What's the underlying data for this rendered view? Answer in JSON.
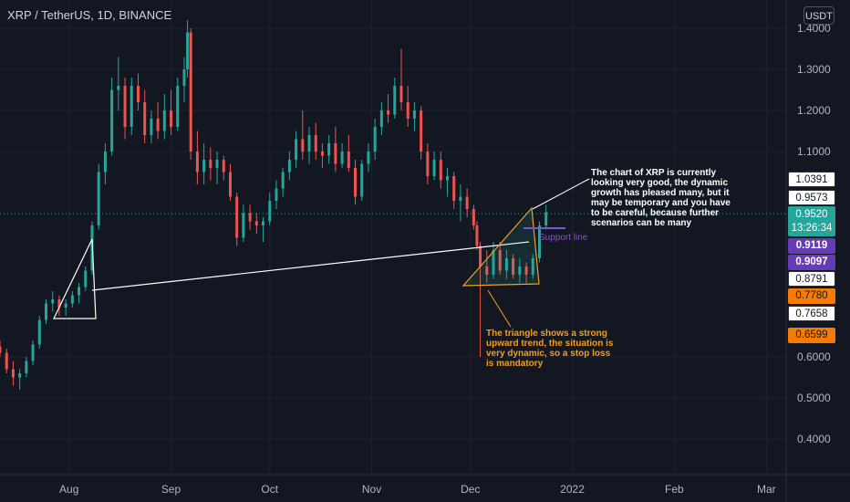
{
  "header": {
    "symbol_title": "XRP / TetherUS, 1D, BINANCE",
    "currency": "USDT"
  },
  "chart_data": {
    "type": "candlestick",
    "symbol": "XRP / TetherUS",
    "interval": "1D",
    "exchange": "BINANCE",
    "y_axis": {
      "ticks": [
        "1.4000",
        "1.3000",
        "1.2000",
        "1.1000",
        "0.6000",
        "0.5000",
        "0.4000"
      ],
      "ylim": [
        0.29,
        1.44
      ]
    },
    "x_axis": {
      "ticks": [
        "Aug",
        "Sep",
        "Oct",
        "Nov",
        "Dec",
        "2022",
        "Feb",
        "Mar"
      ],
      "range": [
        "2021-07-11",
        "2022-03-07"
      ]
    },
    "series": [
      {
        "date": "2021-07-11",
        "open": 0.625,
        "high": 0.64,
        "low": 0.6,
        "close": 0.61
      },
      {
        "date": "2021-07-13",
        "open": 0.61,
        "high": 0.62,
        "low": 0.56,
        "close": 0.57
      },
      {
        "date": "2021-07-15",
        "open": 0.57,
        "high": 0.59,
        "low": 0.53,
        "close": 0.55
      },
      {
        "date": "2021-07-17",
        "open": 0.55,
        "high": 0.57,
        "low": 0.52,
        "close": 0.56
      },
      {
        "date": "2021-07-19",
        "open": 0.56,
        "high": 0.6,
        "low": 0.55,
        "close": 0.59
      },
      {
        "date": "2021-07-21",
        "open": 0.59,
        "high": 0.64,
        "low": 0.58,
        "close": 0.63
      },
      {
        "date": "2021-07-23",
        "open": 0.63,
        "high": 0.7,
        "low": 0.62,
        "close": 0.69
      },
      {
        "date": "2021-07-25",
        "open": 0.69,
        "high": 0.74,
        "low": 0.68,
        "close": 0.73
      },
      {
        "date": "2021-07-27",
        "open": 0.73,
        "high": 0.76,
        "low": 0.71,
        "close": 0.74
      },
      {
        "date": "2021-07-29",
        "open": 0.74,
        "high": 0.75,
        "low": 0.7,
        "close": 0.72
      },
      {
        "date": "2021-07-31",
        "open": 0.72,
        "high": 0.74,
        "low": 0.7,
        "close": 0.73
      },
      {
        "date": "2021-08-02",
        "open": 0.73,
        "high": 0.76,
        "low": 0.72,
        "close": 0.75
      },
      {
        "date": "2021-08-04",
        "open": 0.75,
        "high": 0.78,
        "low": 0.73,
        "close": 0.77
      },
      {
        "date": "2021-08-06",
        "open": 0.77,
        "high": 0.82,
        "low": 0.76,
        "close": 0.81
      },
      {
        "date": "2021-08-08",
        "open": 0.81,
        "high": 0.93,
        "low": 0.8,
        "close": 0.92
      },
      {
        "date": "2021-08-10",
        "open": 0.92,
        "high": 1.07,
        "low": 0.91,
        "close": 1.05
      },
      {
        "date": "2021-08-12",
        "open": 1.05,
        "high": 1.12,
        "low": 1.02,
        "close": 1.1
      },
      {
        "date": "2021-08-14",
        "open": 1.1,
        "high": 1.28,
        "low": 1.09,
        "close": 1.25
      },
      {
        "date": "2021-08-16",
        "open": 1.25,
        "high": 1.33,
        "low": 1.2,
        "close": 1.26
      },
      {
        "date": "2021-08-18",
        "open": 1.26,
        "high": 1.28,
        "low": 1.13,
        "close": 1.16
      },
      {
        "date": "2021-08-20",
        "open": 1.16,
        "high": 1.28,
        "low": 1.14,
        "close": 1.26
      },
      {
        "date": "2021-08-22",
        "open": 1.26,
        "high": 1.29,
        "low": 1.2,
        "close": 1.22
      },
      {
        "date": "2021-08-24",
        "open": 1.22,
        "high": 1.25,
        "low": 1.12,
        "close": 1.14
      },
      {
        "date": "2021-08-26",
        "open": 1.14,
        "high": 1.2,
        "low": 1.12,
        "close": 1.18
      },
      {
        "date": "2021-08-28",
        "open": 1.18,
        "high": 1.22,
        "low": 1.13,
        "close": 1.15
      },
      {
        "date": "2021-08-30",
        "open": 1.15,
        "high": 1.24,
        "low": 1.13,
        "close": 1.2
      },
      {
        "date": "2021-09-01",
        "open": 1.2,
        "high": 1.25,
        "low": 1.14,
        "close": 1.16
      },
      {
        "date": "2021-09-03",
        "open": 1.16,
        "high": 1.28,
        "low": 1.15,
        "close": 1.26
      },
      {
        "date": "2021-09-05",
        "open": 1.26,
        "high": 1.33,
        "low": 1.22,
        "close": 1.3
      },
      {
        "date": "2021-09-06",
        "open": 1.3,
        "high": 1.42,
        "low": 1.28,
        "close": 1.39
      },
      {
        "date": "2021-09-07",
        "open": 1.39,
        "high": 1.4,
        "low": 1.08,
        "close": 1.1
      },
      {
        "date": "2021-09-09",
        "open": 1.1,
        "high": 1.15,
        "low": 1.02,
        "close": 1.05
      },
      {
        "date": "2021-09-11",
        "open": 1.05,
        "high": 1.12,
        "low": 1.02,
        "close": 1.08
      },
      {
        "date": "2021-09-13",
        "open": 1.08,
        "high": 1.11,
        "low": 1.03,
        "close": 1.06
      },
      {
        "date": "2021-09-15",
        "open": 1.06,
        "high": 1.1,
        "low": 1.02,
        "close": 1.08
      },
      {
        "date": "2021-09-17",
        "open": 1.08,
        "high": 1.09,
        "low": 1.03,
        "close": 1.05
      },
      {
        "date": "2021-09-19",
        "open": 1.05,
        "high": 1.07,
        "low": 0.98,
        "close": 0.99
      },
      {
        "date": "2021-09-21",
        "open": 0.99,
        "high": 1.0,
        "low": 0.87,
        "close": 0.89
      },
      {
        "date": "2021-09-23",
        "open": 0.89,
        "high": 0.97,
        "low": 0.88,
        "close": 0.95
      },
      {
        "date": "2021-09-25",
        "open": 0.95,
        "high": 0.97,
        "low": 0.91,
        "close": 0.93
      },
      {
        "date": "2021-09-27",
        "open": 0.93,
        "high": 0.95,
        "low": 0.9,
        "close": 0.92
      },
      {
        "date": "2021-09-29",
        "open": 0.92,
        "high": 0.94,
        "low": 0.88,
        "close": 0.93
      },
      {
        "date": "2021-10-01",
        "open": 0.93,
        "high": 1.0,
        "low": 0.92,
        "close": 0.98
      },
      {
        "date": "2021-10-03",
        "open": 0.98,
        "high": 1.03,
        "low": 0.96,
        "close": 1.01
      },
      {
        "date": "2021-10-05",
        "open": 1.01,
        "high": 1.06,
        "low": 0.99,
        "close": 1.05
      },
      {
        "date": "2021-10-07",
        "open": 1.05,
        "high": 1.1,
        "low": 1.03,
        "close": 1.08
      },
      {
        "date": "2021-10-09",
        "open": 1.08,
        "high": 1.15,
        "low": 1.06,
        "close": 1.13
      },
      {
        "date": "2021-10-11",
        "open": 1.13,
        "high": 1.2,
        "low": 1.08,
        "close": 1.1
      },
      {
        "date": "2021-10-13",
        "open": 1.1,
        "high": 1.16,
        "low": 1.07,
        "close": 1.14
      },
      {
        "date": "2021-10-15",
        "open": 1.14,
        "high": 1.17,
        "low": 1.08,
        "close": 1.1
      },
      {
        "date": "2021-10-17",
        "open": 1.1,
        "high": 1.12,
        "low": 1.06,
        "close": 1.09
      },
      {
        "date": "2021-10-19",
        "open": 1.09,
        "high": 1.14,
        "low": 1.07,
        "close": 1.12
      },
      {
        "date": "2021-10-21",
        "open": 1.12,
        "high": 1.16,
        "low": 1.05,
        "close": 1.07
      },
      {
        "date": "2021-10-23",
        "open": 1.07,
        "high": 1.12,
        "low": 1.06,
        "close": 1.1
      },
      {
        "date": "2021-10-25",
        "open": 1.1,
        "high": 1.14,
        "low": 1.05,
        "close": 1.06
      },
      {
        "date": "2021-10-27",
        "open": 1.06,
        "high": 1.08,
        "low": 0.97,
        "close": 0.99
      },
      {
        "date": "2021-10-29",
        "open": 0.99,
        "high": 1.08,
        "low": 0.98,
        "close": 1.07
      },
      {
        "date": "2021-10-31",
        "open": 1.07,
        "high": 1.12,
        "low": 1.05,
        "close": 1.1
      },
      {
        "date": "2021-11-02",
        "open": 1.1,
        "high": 1.18,
        "low": 1.08,
        "close": 1.16
      },
      {
        "date": "2021-11-04",
        "open": 1.16,
        "high": 1.22,
        "low": 1.14,
        "close": 1.2
      },
      {
        "date": "2021-11-06",
        "open": 1.2,
        "high": 1.24,
        "low": 1.17,
        "close": 1.19
      },
      {
        "date": "2021-11-08",
        "open": 1.19,
        "high": 1.28,
        "low": 1.18,
        "close": 1.26
      },
      {
        "date": "2021-11-10",
        "open": 1.26,
        "high": 1.35,
        "low": 1.2,
        "close": 1.22
      },
      {
        "date": "2021-11-12",
        "open": 1.22,
        "high": 1.26,
        "low": 1.16,
        "close": 1.18
      },
      {
        "date": "2021-11-14",
        "open": 1.18,
        "high": 1.22,
        "low": 1.15,
        "close": 1.2
      },
      {
        "date": "2021-11-16",
        "open": 1.2,
        "high": 1.21,
        "low": 1.08,
        "close": 1.1
      },
      {
        "date": "2021-11-18",
        "open": 1.1,
        "high": 1.12,
        "low": 1.02,
        "close": 1.04
      },
      {
        "date": "2021-11-20",
        "open": 1.04,
        "high": 1.1,
        "low": 1.03,
        "close": 1.08
      },
      {
        "date": "2021-11-22",
        "open": 1.08,
        "high": 1.1,
        "low": 1.01,
        "close": 1.03
      },
      {
        "date": "2021-11-24",
        "open": 1.03,
        "high": 1.06,
        "low": 0.99,
        "close": 1.04
      },
      {
        "date": "2021-11-26",
        "open": 1.04,
        "high": 1.05,
        "low": 0.96,
        "close": 0.98
      },
      {
        "date": "2021-11-28",
        "open": 0.98,
        "high": 1.02,
        "low": 0.93,
        "close": 0.99
      },
      {
        "date": "2021-11-30",
        "open": 0.99,
        "high": 1.01,
        "low": 0.94,
        "close": 0.96
      },
      {
        "date": "2021-12-02",
        "open": 0.96,
        "high": 0.97,
        "low": 0.91,
        "close": 0.92
      },
      {
        "date": "2021-12-03",
        "open": 0.92,
        "high": 0.93,
        "low": 0.86,
        "close": 0.87
      },
      {
        "date": "2021-12-04",
        "open": 0.87,
        "high": 0.88,
        "low": 0.6,
        "close": 0.82
      },
      {
        "date": "2021-12-06",
        "open": 0.82,
        "high": 0.86,
        "low": 0.78,
        "close": 0.8
      },
      {
        "date": "2021-12-08",
        "open": 0.8,
        "high": 0.88,
        "low": 0.79,
        "close": 0.86
      },
      {
        "date": "2021-12-10",
        "open": 0.86,
        "high": 0.88,
        "low": 0.8,
        "close": 0.81
      },
      {
        "date": "2021-12-12",
        "open": 0.81,
        "high": 0.86,
        "low": 0.79,
        "close": 0.84
      },
      {
        "date": "2021-12-14",
        "open": 0.84,
        "high": 0.85,
        "low": 0.79,
        "close": 0.8
      },
      {
        "date": "2021-12-16",
        "open": 0.8,
        "high": 0.84,
        "low": 0.78,
        "close": 0.82
      },
      {
        "date": "2021-12-18",
        "open": 0.82,
        "high": 0.83,
        "low": 0.78,
        "close": 0.8
      },
      {
        "date": "2021-12-20",
        "open": 0.8,
        "high": 0.85,
        "low": 0.79,
        "close": 0.84
      },
      {
        "date": "2021-12-22",
        "open": 0.84,
        "high": 0.93,
        "low": 0.83,
        "close": 0.92
      },
      {
        "date": "2021-12-24",
        "open": 0.92,
        "high": 0.97,
        "low": 0.91,
        "close": 0.952
      }
    ],
    "drawings": {
      "support_line_label": "Support line",
      "annotations": [
        "The chart of XRP is currently looking very good, the dynamic growth has pleased many, but it may be temporary and you have to be careful, because further scenarios can be many",
        "The triangle shows a strong upward trend, the situation is very dynamic, so a stop loss is mandatory"
      ]
    },
    "price_labels": [
      {
        "value": "1.0391",
        "style": "white"
      },
      {
        "value": "0.9573",
        "style": "white"
      },
      {
        "value": "0.9520",
        "style": "teal",
        "countdown": "13:26:34"
      },
      {
        "value": "0.9119",
        "style": "purple"
      },
      {
        "value": "0.9097",
        "style": "purple"
      },
      {
        "value": "0.8791",
        "style": "white"
      },
      {
        "value": "0.7780",
        "style": "orange"
      },
      {
        "value": "0.7658",
        "style": "white"
      },
      {
        "value": "0.6599",
        "style": "orange"
      }
    ],
    "colors": {
      "background": "#131722",
      "up": "#26a69a",
      "down": "#ef5350",
      "triangle_orange": "#f59d1e",
      "support": "#7e57c2",
      "drawing_white": "#ffffff"
    },
    "grid": true
  }
}
